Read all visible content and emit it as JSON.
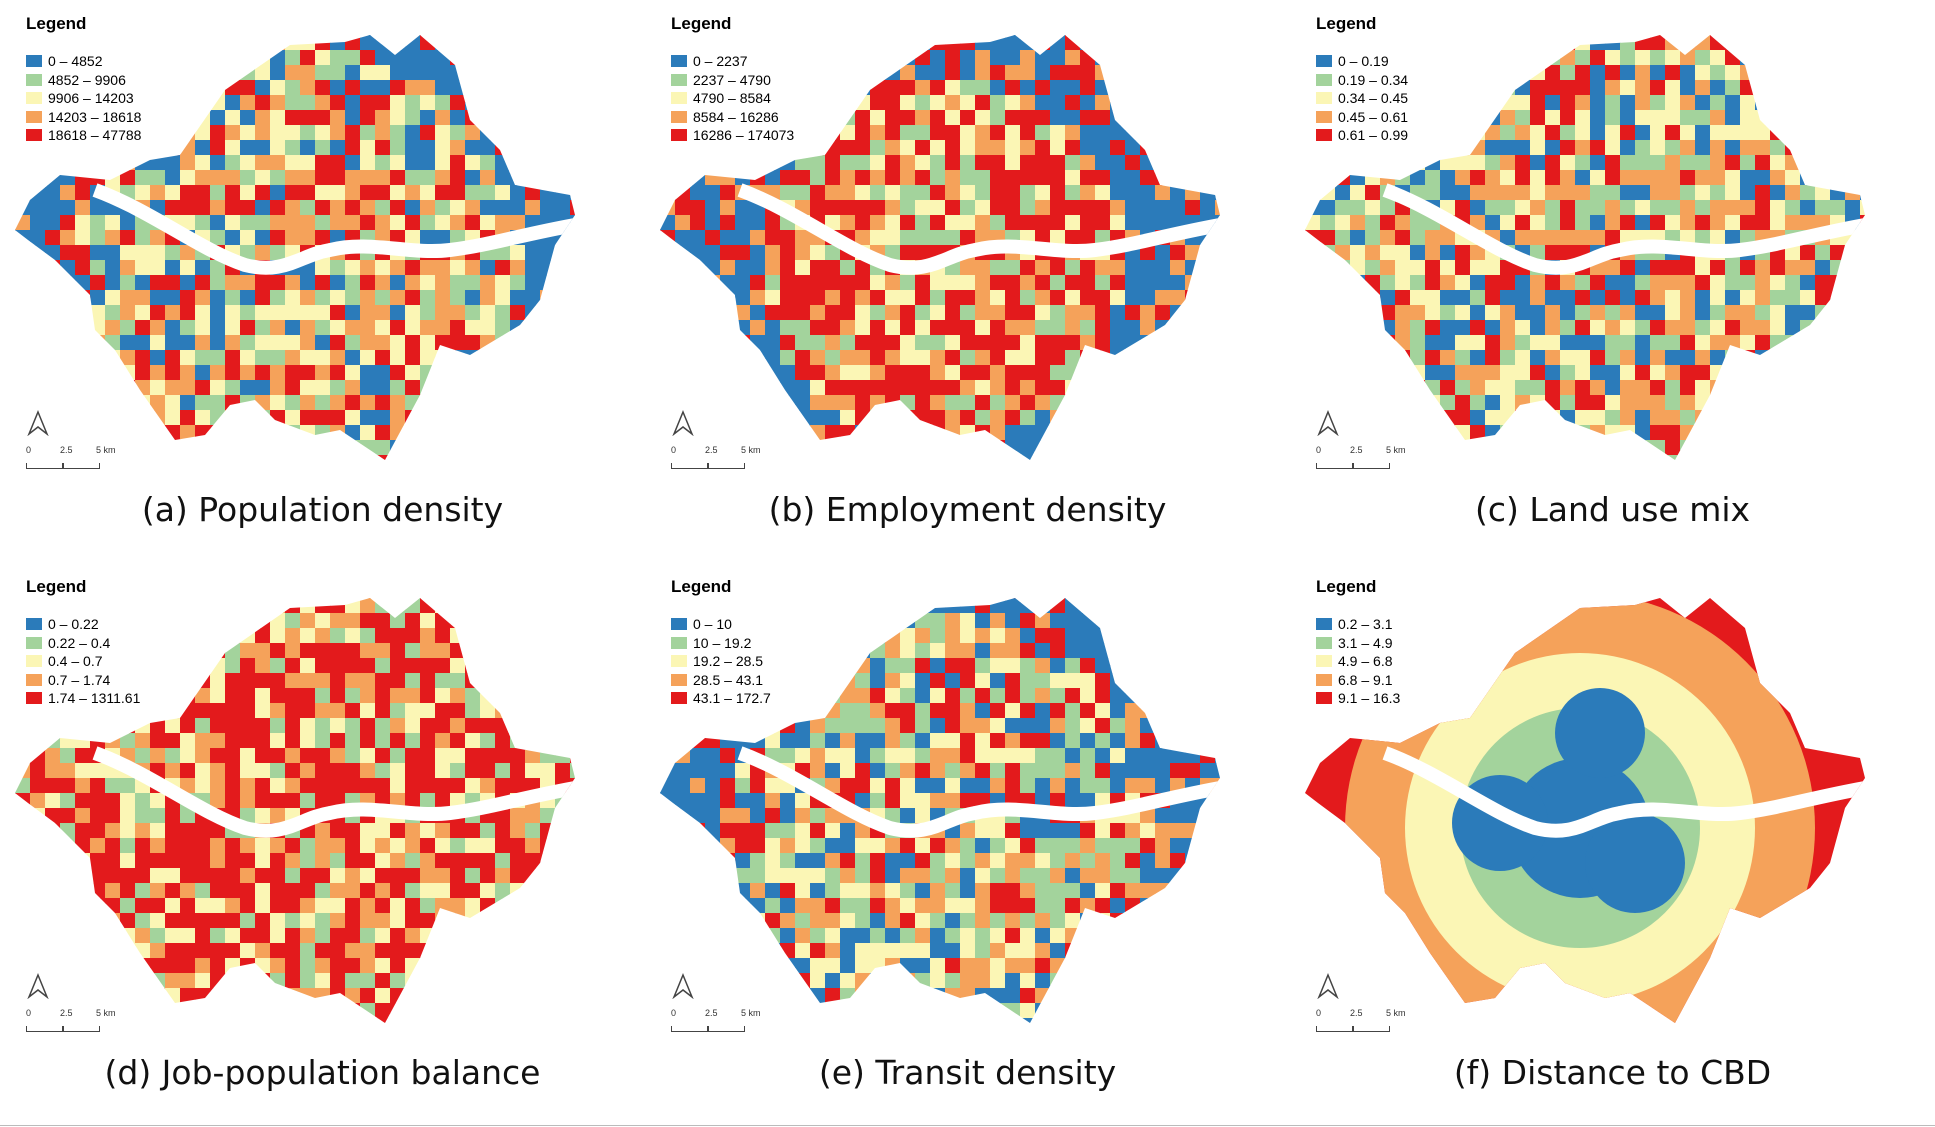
{
  "panels": [
    {
      "caption": "(a) Population density",
      "legend_title": "Legend",
      "classes": [
        "0 – 4852",
        "4852 – 9906",
        "9906 – 14203",
        "14203 – 18618",
        "18618 – 47788"
      ],
      "scheme": "choropleth"
    },
    {
      "caption": "(b) Employment density",
      "legend_title": "Legend",
      "classes": [
        "0 – 2237",
        "2237 – 4790",
        "4790 – 8584",
        "8584 – 16286",
        "16286 – 174073"
      ],
      "scheme": "choropleth"
    },
    {
      "caption": "(c) Land use mix",
      "legend_title": "Legend",
      "classes": [
        "0 – 0.19",
        "0.19 – 0.34",
        "0.34 – 0.45",
        "0.45 – 0.61",
        "0.61 – 0.99"
      ],
      "scheme": "choropleth"
    },
    {
      "caption": "(d) Job-population balance",
      "legend_title": "Legend",
      "classes": [
        "0 – 0.22",
        "0.22 – 0.4",
        "0.4 – 0.7",
        "0.7 – 1.74",
        "1.74 – 1311.61"
      ],
      "scheme": "choropleth"
    },
    {
      "caption": "(e) Transit density",
      "legend_title": "Legend",
      "classes": [
        "0 – 10",
        "10 – 19.2",
        "19.2 – 28.5",
        "28.5 – 43.1",
        "43.1 – 172.7"
      ],
      "scheme": "choropleth"
    },
    {
      "caption": "(f) Distance to CBD",
      "legend_title": "Legend",
      "classes": [
        "0.2 – 3.1",
        "3.1 – 4.9",
        "4.9 – 6.8",
        "6.8 – 9.1",
        "9.1 – 16.3"
      ],
      "scheme": "rings"
    }
  ],
  "class_colors": [
    "#2b7bba",
    "#a3d39c",
    "#fbf6b5",
    "#f5a25a",
    "#e31a1c"
  ],
  "river_color": "#ffffff",
  "north_arrow_icon": "north-arrow-icon",
  "scale_bar": {
    "labels": [
      "0",
      "2.5",
      "5 km"
    ]
  }
}
